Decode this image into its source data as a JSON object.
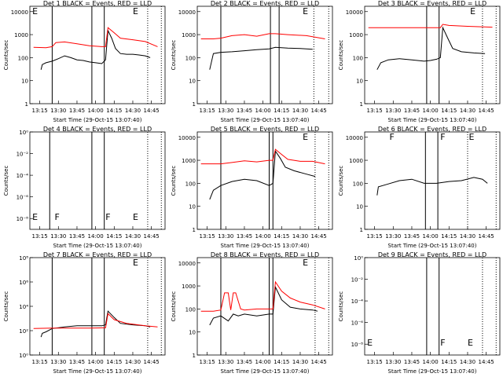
{
  "chart_data": [
    {
      "type": "line",
      "title": "Det 1 BLACK = Events, RED = LLD",
      "xlabel": "Start Time (29-Oct-15 13:07:40)",
      "ylabel": "Counts/sec",
      "log_y": true,
      "xlim": [
        787,
        896
      ],
      "xticks": [
        {
          "value": 795,
          "label": "13:15"
        },
        {
          "value": 810,
          "label": "13:30"
        },
        {
          "value": 825,
          "label": "13:45"
        },
        {
          "value": 840,
          "label": "14:00"
        },
        {
          "value": 855,
          "label": "14:15"
        },
        {
          "value": 870,
          "label": "14:30"
        },
        {
          "value": 885,
          "label": "14:45"
        }
      ],
      "ylim": [
        1,
        17000
      ],
      "yticks": [
        1,
        10,
        100,
        1000,
        10000
      ],
      "solid_lines": [
        805,
        837,
        847
      ],
      "dotted_lines": [
        882,
        893
      ],
      "annotations": [
        {
          "text": "E",
          "x": 789,
          "pos": "top"
        },
        {
          "text": "E",
          "x": 870,
          "pos": "top"
        }
      ],
      "series": [
        {
          "color": "#000000",
          "x": [
            796,
            797,
            800,
            805,
            810,
            815,
            820,
            825,
            830,
            835,
            840,
            845,
            848,
            850,
            853,
            856,
            860,
            865,
            870,
            875,
            880,
            884
          ],
          "values": [
            30,
            50,
            60,
            70,
            90,
            120,
            100,
            80,
            75,
            65,
            60,
            55,
            80,
            1500,
            700,
            250,
            150,
            140,
            140,
            130,
            120,
            100
          ]
        },
        {
          "color": "#ff0000",
          "x": [
            790,
            800,
            805,
            808,
            815,
            825,
            835,
            845,
            848,
            850,
            855,
            860,
            870,
            880,
            890
          ],
          "values": [
            280,
            270,
            300,
            450,
            480,
            400,
            330,
            300,
            300,
            2000,
            1200,
            700,
            600,
            500,
            300
          ]
        }
      ]
    },
    {
      "type": "line",
      "title": "Det 2 BLACK = Events, RED = LLD",
      "xlabel": "Start Time (29-Oct-15 13:07:40)",
      "ylabel": "Counts/sec",
      "log_y": true,
      "xlim": [
        787,
        896
      ],
      "xticks": [
        {
          "value": 795,
          "label": "13:15"
        },
        {
          "value": 810,
          "label": "13:30"
        },
        {
          "value": 825,
          "label": "13:45"
        },
        {
          "value": 840,
          "label": "14:00"
        },
        {
          "value": 855,
          "label": "14:15"
        },
        {
          "value": 870,
          "label": "14:30"
        },
        {
          "value": 885,
          "label": "14:45"
        }
      ],
      "ylim": [
        1,
        17000
      ],
      "yticks": [
        1,
        10,
        100,
        1000,
        10000
      ],
      "solid_lines": [
        806,
        846,
        853
      ],
      "dotted_lines": [
        881,
        893
      ],
      "annotations": [
        {
          "text": "E",
          "x": 872,
          "pos": "top"
        }
      ],
      "series": [
        {
          "color": "#000000",
          "x": [
            797,
            800,
            806,
            815,
            825,
            835,
            845,
            850,
            860,
            870,
            880
          ],
          "values": [
            30,
            150,
            170,
            180,
            200,
            220,
            240,
            280,
            260,
            250,
            230
          ]
        },
        {
          "color": "#ff0000",
          "x": [
            790,
            800,
            806,
            815,
            825,
            835,
            845,
            850,
            860,
            875,
            890
          ],
          "values": [
            650,
            650,
            700,
            900,
            1000,
            850,
            1100,
            1100,
            1000,
            900,
            650
          ]
        }
      ]
    },
    {
      "type": "line",
      "title": "Det 3 BLACK = Events, RED = LLD",
      "xlabel": "Start Time (29-Oct-15 13:07:40)",
      "ylabel": "Counts/sec",
      "log_y": true,
      "xlim": [
        787,
        896
      ],
      "xticks": [
        {
          "value": 795,
          "label": "13:15"
        },
        {
          "value": 810,
          "label": "13:30"
        },
        {
          "value": 825,
          "label": "13:45"
        },
        {
          "value": 840,
          "label": "14:00"
        },
        {
          "value": 855,
          "label": "14:15"
        },
        {
          "value": 870,
          "label": "14:30"
        },
        {
          "value": 885,
          "label": "14:45"
        }
      ],
      "ylim": [
        1,
        17000
      ],
      "yticks": [
        1,
        10,
        100,
        1000,
        10000
      ],
      "solid_lines": [
        837,
        847
      ],
      "dotted_lines": [
        882,
        893
      ],
      "annotations": [
        {
          "text": "E",
          "x": 872,
          "pos": "top"
        }
      ],
      "series": [
        {
          "color": "#000000",
          "x": [
            797,
            800,
            806,
            815,
            825,
            835,
            840,
            845,
            848,
            850,
            854,
            858,
            865,
            875,
            884
          ],
          "values": [
            30,
            60,
            80,
            90,
            80,
            70,
            75,
            85,
            100,
            2000,
            700,
            250,
            180,
            160,
            150
          ]
        },
        {
          "color": "#ff0000",
          "x": [
            790,
            810,
            830,
            845,
            848,
            850,
            855,
            870,
            890
          ],
          "values": [
            2000,
            2000,
            2000,
            2000,
            2000,
            2800,
            2500,
            2300,
            2100
          ]
        }
      ]
    },
    {
      "type": "line",
      "title": "Det 4 BLACK = Events, RED = LLD",
      "xlabel": "Start Time (29-Oct-15 13:07:40)",
      "ylabel": "Counts/sec",
      "log_y": true,
      "xlim": [
        787,
        896
      ],
      "xticks": [
        {
          "value": 795,
          "label": "13:15"
        },
        {
          "value": 810,
          "label": "13:30"
        },
        {
          "value": 825,
          "label": "13:45"
        },
        {
          "value": 840,
          "label": "14:00"
        },
        {
          "value": 855,
          "label": "14:15"
        },
        {
          "value": 870,
          "label": "14:30"
        },
        {
          "value": 885,
          "label": "14:45"
        }
      ],
      "ylim": [
        1e-09,
        1
      ],
      "yticks": [
        {
          "value": 1e-08,
          "label": "10⁻⁸"
        },
        {
          "value": 1e-06,
          "label": "10⁻⁶"
        },
        {
          "value": 0.0001,
          "label": "10⁻⁴"
        },
        {
          "value": 0.01,
          "label": "10⁻²"
        },
        {
          "value": 1,
          "label": "10⁰"
        }
      ],
      "solid_lines": [
        803,
        837,
        847
      ],
      "dotted_lines": [
        882,
        893
      ],
      "annotations": [
        {
          "text": "E",
          "x": 789,
          "pos": "bottom"
        },
        {
          "text": "F",
          "x": 807,
          "pos": "bottom"
        },
        {
          "text": "F",
          "x": 848,
          "pos": "bottom"
        },
        {
          "text": "E",
          "x": 870,
          "pos": "bottom"
        }
      ],
      "series": []
    },
    {
      "type": "line",
      "title": "Det 5 BLACK = Events, RED = LLD",
      "xlabel": "Start Time (29-Oct-15 13:07:40)",
      "ylabel": "Counts/sec",
      "log_y": true,
      "xlim": [
        787,
        896
      ],
      "xticks": [
        {
          "value": 795,
          "label": "13:15"
        },
        {
          "value": 810,
          "label": "13:30"
        },
        {
          "value": 825,
          "label": "13:45"
        },
        {
          "value": 840,
          "label": "14:00"
        },
        {
          "value": 855,
          "label": "14:15"
        },
        {
          "value": 870,
          "label": "14:30"
        },
        {
          "value": 885,
          "label": "14:45"
        }
      ],
      "ylim": [
        1,
        17000
      ],
      "yticks": [
        1,
        10,
        100,
        1000,
        10000
      ],
      "solid_lines": [
        806,
        845,
        848
      ],
      "dotted_lines": [
        882,
        893
      ],
      "annotations": [
        {
          "text": "E",
          "x": 872,
          "pos": "top"
        }
      ],
      "series": [
        {
          "color": "#000000",
          "x": [
            797,
            800,
            806,
            815,
            825,
            835,
            845,
            848,
            850,
            854,
            858,
            865,
            875,
            882
          ],
          "values": [
            20,
            50,
            80,
            120,
            150,
            130,
            80,
            100,
            2500,
            1200,
            500,
            350,
            250,
            200
          ]
        },
        {
          "color": "#ff0000",
          "x": [
            790,
            800,
            806,
            815,
            825,
            835,
            845,
            848,
            850,
            855,
            860,
            870,
            880,
            890
          ],
          "values": [
            700,
            700,
            700,
            800,
            950,
            850,
            1000,
            1000,
            3000,
            1800,
            1100,
            900,
            900,
            700
          ]
        }
      ]
    },
    {
      "type": "line",
      "title": "Det 6 BLACK = Events, RED = LLD",
      "xlabel": "Start Time (29-Oct-15 13:07:40)",
      "ylabel": "Counts/sec",
      "log_y": true,
      "xlim": [
        787,
        896
      ],
      "xticks": [
        {
          "value": 795,
          "label": "13:15"
        },
        {
          "value": 810,
          "label": "13:30"
        },
        {
          "value": 825,
          "label": "13:45"
        },
        {
          "value": 840,
          "label": "14:00"
        },
        {
          "value": 855,
          "label": "14:15"
        },
        {
          "value": 870,
          "label": "14:30"
        },
        {
          "value": 885,
          "label": "14:45"
        }
      ],
      "ylim": [
        1,
        17000
      ],
      "yticks": [
        1,
        10,
        100,
        1000,
        10000
      ],
      "solid_lines": [
        836,
        846
      ],
      "dotted_lines": [
        870,
        893
      ],
      "annotations": [
        {
          "text": "F",
          "x": 807,
          "pos": "top"
        },
        {
          "text": "F",
          "x": 848,
          "pos": "top"
        },
        {
          "text": "E",
          "x": 871,
          "pos": "top"
        }
      ],
      "series": [
        {
          "color": "#000000",
          "x": [
            797,
            798,
            805,
            815,
            825,
            835,
            845,
            855,
            865,
            875,
            882,
            886
          ],
          "values": [
            30,
            70,
            90,
            130,
            150,
            100,
            100,
            120,
            130,
            180,
            150,
            100
          ]
        }
      ]
    },
    {
      "type": "line",
      "title": "Det 7 BLACK = Events, RED = LLD",
      "xlabel": "Start Time (29-Oct-15 13:07:40)",
      "ylabel": "Counts/sec",
      "log_y": true,
      "xlim": [
        787,
        896
      ],
      "xticks": [
        {
          "value": 795,
          "label": "13:15"
        },
        {
          "value": 810,
          "label": "13:30"
        },
        {
          "value": 825,
          "label": "13:45"
        },
        {
          "value": 840,
          "label": "14:00"
        },
        {
          "value": 855,
          "label": "14:15"
        },
        {
          "value": 870,
          "label": "14:30"
        },
        {
          "value": 885,
          "label": "14:45"
        }
      ],
      "ylim": [
        1,
        100000000.0
      ],
      "yticks": [
        {
          "value": 1,
          "label": "10⁰"
        },
        {
          "value": 100,
          "label": "10²"
        },
        {
          "value": 10000,
          "label": "10⁴"
        },
        {
          "value": 1000000,
          "label": "10⁶"
        },
        {
          "value": 100000000,
          "label": "10⁸"
        }
      ],
      "solid_lines": [
        805,
        837,
        847
      ],
      "dotted_lines": [
        882,
        893
      ],
      "annotations": [
        {
          "text": "E",
          "x": 870,
          "pos": "top"
        }
      ],
      "series": [
        {
          "color": "#000000",
          "x": [
            796,
            797,
            800,
            805,
            815,
            825,
            835,
            845,
            848,
            850,
            855,
            860,
            870,
            880,
            884
          ],
          "values": [
            30,
            60,
            80,
            150,
            200,
            250,
            250,
            250,
            300,
            4000,
            1200,
            400,
            300,
            250,
            200
          ]
        },
        {
          "color": "#ff0000",
          "x": [
            790,
            805,
            820,
            835,
            845,
            848,
            850,
            855,
            865,
            880,
            890
          ],
          "values": [
            150,
            160,
            160,
            160,
            170,
            170,
            2500,
            800,
            400,
            250,
            200
          ]
        }
      ]
    },
    {
      "type": "line",
      "title": "Det 8 BLACK = Events, RED = LLD",
      "xlabel": "Start Time (29-Oct-15 13:07:40)",
      "ylabel": "Counts/sec",
      "log_y": true,
      "xlim": [
        787,
        896
      ],
      "xticks": [
        {
          "value": 795,
          "label": "13:15"
        },
        {
          "value": 810,
          "label": "13:30"
        },
        {
          "value": 825,
          "label": "13:45"
        },
        {
          "value": 840,
          "label": "14:00"
        },
        {
          "value": 855,
          "label": "14:15"
        },
        {
          "value": 870,
          "label": "14:30"
        },
        {
          "value": 885,
          "label": "14:45"
        }
      ],
      "ylim": [
        1,
        17000
      ],
      "yticks": [
        1,
        10,
        100,
        1000,
        10000
      ],
      "solid_lines": [
        806,
        845,
        848
      ],
      "dotted_lines": [
        882,
        893
      ],
      "annotations": [
        {
          "text": "E",
          "x": 872,
          "pos": "top"
        }
      ],
      "series": [
        {
          "color": "#000000",
          "x": [
            797,
            800,
            806,
            812,
            816,
            820,
            825,
            835,
            845,
            848,
            850,
            855,
            862,
            870,
            880,
            884
          ],
          "values": [
            20,
            40,
            50,
            30,
            60,
            50,
            60,
            50,
            60,
            60,
            900,
            250,
            120,
            100,
            90,
            80
          ]
        },
        {
          "color": "#ff0000",
          "x": [
            790,
            800,
            806,
            809,
            812,
            814,
            816,
            818,
            822,
            825,
            835,
            845,
            848,
            850,
            855,
            862,
            870,
            880,
            890
          ],
          "values": [
            80,
            80,
            90,
            500,
            500,
            90,
            500,
            500,
            100,
            90,
            100,
            100,
            100,
            1500,
            600,
            300,
            200,
            150,
            100
          ]
        }
      ]
    },
    {
      "type": "line",
      "title": "Det 9 BLACK = Events, RED = LLD",
      "xlabel": "Start Time (29-Oct-15 13:07:40)",
      "ylabel": "Counts/sec",
      "log_y": true,
      "xlim": [
        787,
        896
      ],
      "xticks": [
        {
          "value": 795,
          "label": "13:15"
        },
        {
          "value": 810,
          "label": "13:30"
        },
        {
          "value": 825,
          "label": "13:45"
        },
        {
          "value": 840,
          "label": "14:00"
        },
        {
          "value": 855,
          "label": "14:15"
        },
        {
          "value": 870,
          "label": "14:30"
        },
        {
          "value": 885,
          "label": "14:45"
        }
      ],
      "ylim": [
        1e-09,
        1
      ],
      "yticks": [
        {
          "value": 1e-08,
          "label": "10⁻⁸"
        },
        {
          "value": 1e-06,
          "label": "10⁻⁶"
        },
        {
          "value": 0.0001,
          "label": "10⁻⁴"
        },
        {
          "value": 0.01,
          "label": "10⁻²"
        },
        {
          "value": 1,
          "label": "10⁰"
        }
      ],
      "solid_lines": [
        837,
        847
      ],
      "dotted_lines": [
        882,
        893
      ],
      "annotations": [
        {
          "text": "E",
          "x": 789,
          "pos": "bottom"
        },
        {
          "text": "F",
          "x": 848,
          "pos": "bottom"
        },
        {
          "text": "E",
          "x": 870,
          "pos": "bottom"
        }
      ],
      "series": []
    }
  ]
}
